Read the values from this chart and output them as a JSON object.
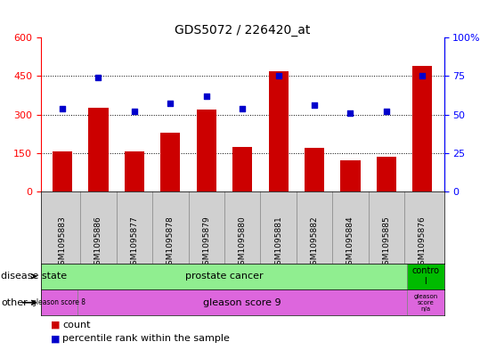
{
  "title": "GDS5072 / 226420_at",
  "samples": [
    "GSM1095883",
    "GSM1095886",
    "GSM1095877",
    "GSM1095878",
    "GSM1095879",
    "GSM1095880",
    "GSM1095881",
    "GSM1095882",
    "GSM1095884",
    "GSM1095885",
    "GSM1095876"
  ],
  "counts": [
    155,
    325,
    155,
    230,
    320,
    175,
    470,
    170,
    120,
    135,
    490
  ],
  "percentiles": [
    54,
    74,
    52,
    57,
    62,
    54,
    75,
    56,
    51,
    52,
    75
  ],
  "ylim_left": [
    0,
    600
  ],
  "ylim_right": [
    0,
    100
  ],
  "yticks_left": [
    0,
    150,
    300,
    450,
    600
  ],
  "yticks_right": [
    0,
    25,
    50,
    75,
    100
  ],
  "bar_color": "#cc0000",
  "dot_color": "#0000cc",
  "tick_area_color": "#d0d0d0",
  "disease_state_color": "#90ee90",
  "control_color": "#00bb00",
  "other_color": "#dd66dd",
  "legend_count_label": "count",
  "legend_pct_label": "percentile rank within the sample",
  "fig_width": 5.39,
  "fig_height": 3.93,
  "dpi": 100
}
